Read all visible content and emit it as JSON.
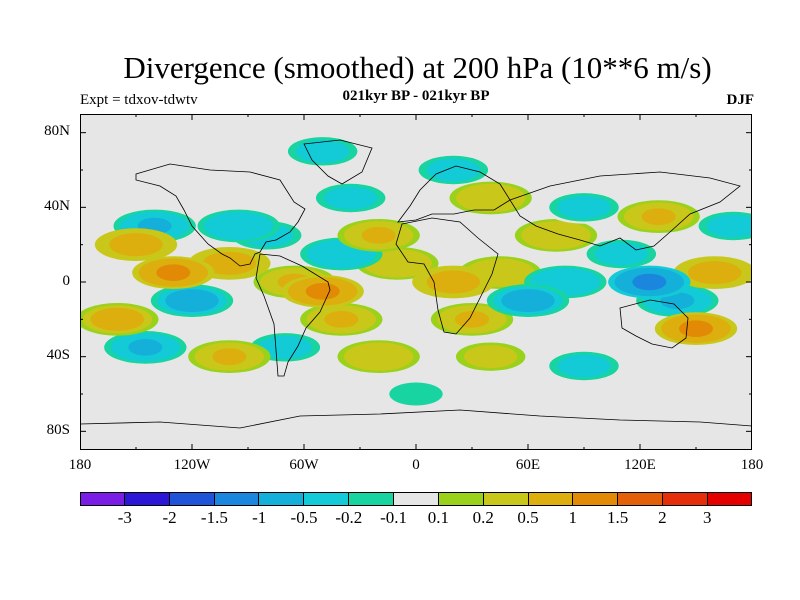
{
  "title": "Divergence (smoothed) at 200 hPa (10**6 m/s)",
  "subtitle": "021kyr BP - 021kyr BP",
  "experiment": "Expt = tdxov-tdwtv",
  "season": "DJF",
  "chart_data": {
    "type": "heatmap",
    "x_ticks": [
      "180",
      "120W",
      "60W",
      "0",
      "60E",
      "120E",
      "180"
    ],
    "y_ticks": [
      "80N",
      "40N",
      "0",
      "40S",
      "80S"
    ],
    "x_range": [
      -180,
      180
    ],
    "y_range": [
      -90,
      90
    ],
    "colorbar": {
      "labels": [
        "-3",
        "-2",
        "-1.5",
        "-1",
        "-0.5",
        "-0.2",
        "-0.1",
        "0.1",
        "0.2",
        "0.5",
        "1",
        "1.5",
        "2",
        "3"
      ],
      "colors": [
        "#7a1ee6",
        "#2c17d6",
        "#1f54d8",
        "#1b86dd",
        "#14b0d9",
        "#13cbd6",
        "#17d4a0",
        "#e6e6e6",
        "#99d11b",
        "#c9c719",
        "#dcaf0e",
        "#e28a05",
        "#e35f08",
        "#e52f0b",
        "#e50000"
      ]
    },
    "anomalies": [
      {
        "lon": -150,
        "lat": 20,
        "value": 0.8
      },
      {
        "lon": -140,
        "lat": 30,
        "value": -0.6
      },
      {
        "lon": -130,
        "lat": 5,
        "value": 1.0
      },
      {
        "lon": -160,
        "lat": -20,
        "value": 0.7
      },
      {
        "lon": -145,
        "lat": -35,
        "value": -0.6
      },
      {
        "lon": -100,
        "lat": 10,
        "value": 0.9
      },
      {
        "lon": -95,
        "lat": 30,
        "value": -0.5
      },
      {
        "lon": -80,
        "lat": 25,
        "value": -0.4
      },
      {
        "lon": -65,
        "lat": 0,
        "value": 0.6
      },
      {
        "lon": -50,
        "lat": -5,
        "value": 1.0
      },
      {
        "lon": -40,
        "lat": -20,
        "value": 0.5
      },
      {
        "lon": -70,
        "lat": -35,
        "value": -0.4
      },
      {
        "lon": -40,
        "lat": 15,
        "value": -0.5
      },
      {
        "lon": -20,
        "lat": 25,
        "value": 0.5
      },
      {
        "lon": -35,
        "lat": 45,
        "value": -0.3
      },
      {
        "lon": -10,
        "lat": 10,
        "value": 0.4
      },
      {
        "lon": 20,
        "lat": 0,
        "value": 0.9
      },
      {
        "lon": 30,
        "lat": -20,
        "value": 0.6
      },
      {
        "lon": 45,
        "lat": 5,
        "value": 0.4
      },
      {
        "lon": 60,
        "lat": -10,
        "value": -0.8
      },
      {
        "lon": 80,
        "lat": 0,
        "value": -0.5
      },
      {
        "lon": 75,
        "lat": 25,
        "value": 0.4
      },
      {
        "lon": 90,
        "lat": 40,
        "value": -0.4
      },
      {
        "lon": 110,
        "lat": 15,
        "value": -0.3
      },
      {
        "lon": 125,
        "lat": 0,
        "value": -1.2
      },
      {
        "lon": 140,
        "lat": -10,
        "value": -0.6
      },
      {
        "lon": 160,
        "lat": 5,
        "value": 0.9
      },
      {
        "lon": 150,
        "lat": -25,
        "value": 1.0
      },
      {
        "lon": 170,
        "lat": 30,
        "value": -0.4
      },
      {
        "lon": 130,
        "lat": 35,
        "value": 0.5
      },
      {
        "lon": 20,
        "lat": 60,
        "value": -0.3
      },
      {
        "lon": 40,
        "lat": 45,
        "value": 0.4
      },
      {
        "lon": -120,
        "lat": -10,
        "value": -0.7
      },
      {
        "lon": -100,
        "lat": -40,
        "value": 0.5
      },
      {
        "lon": 40,
        "lat": -40,
        "value": 0.3
      },
      {
        "lon": 90,
        "lat": -45,
        "value": -0.4
      },
      {
        "lon": -20,
        "lat": -40,
        "value": 0.4
      },
      {
        "lon": 0,
        "lat": -60,
        "value": -0.2
      },
      {
        "lon": -50,
        "lat": 70,
        "value": -0.3
      }
    ]
  }
}
